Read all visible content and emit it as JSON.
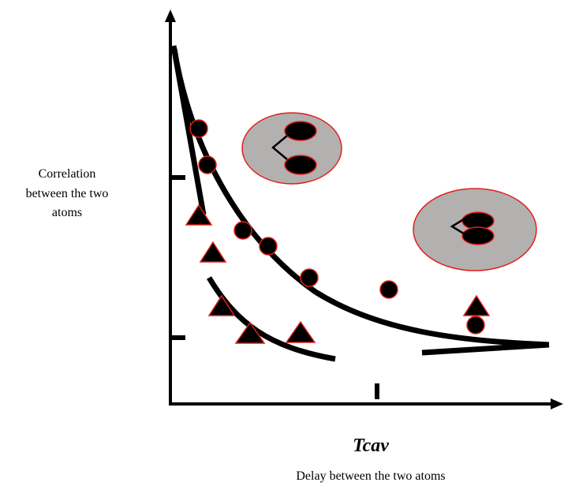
{
  "y_label": [
    "Correlation",
    "between the two",
    "atoms"
  ],
  "x_label": "Tcav",
  "x_caption": "Delay between the two atoms"
}
